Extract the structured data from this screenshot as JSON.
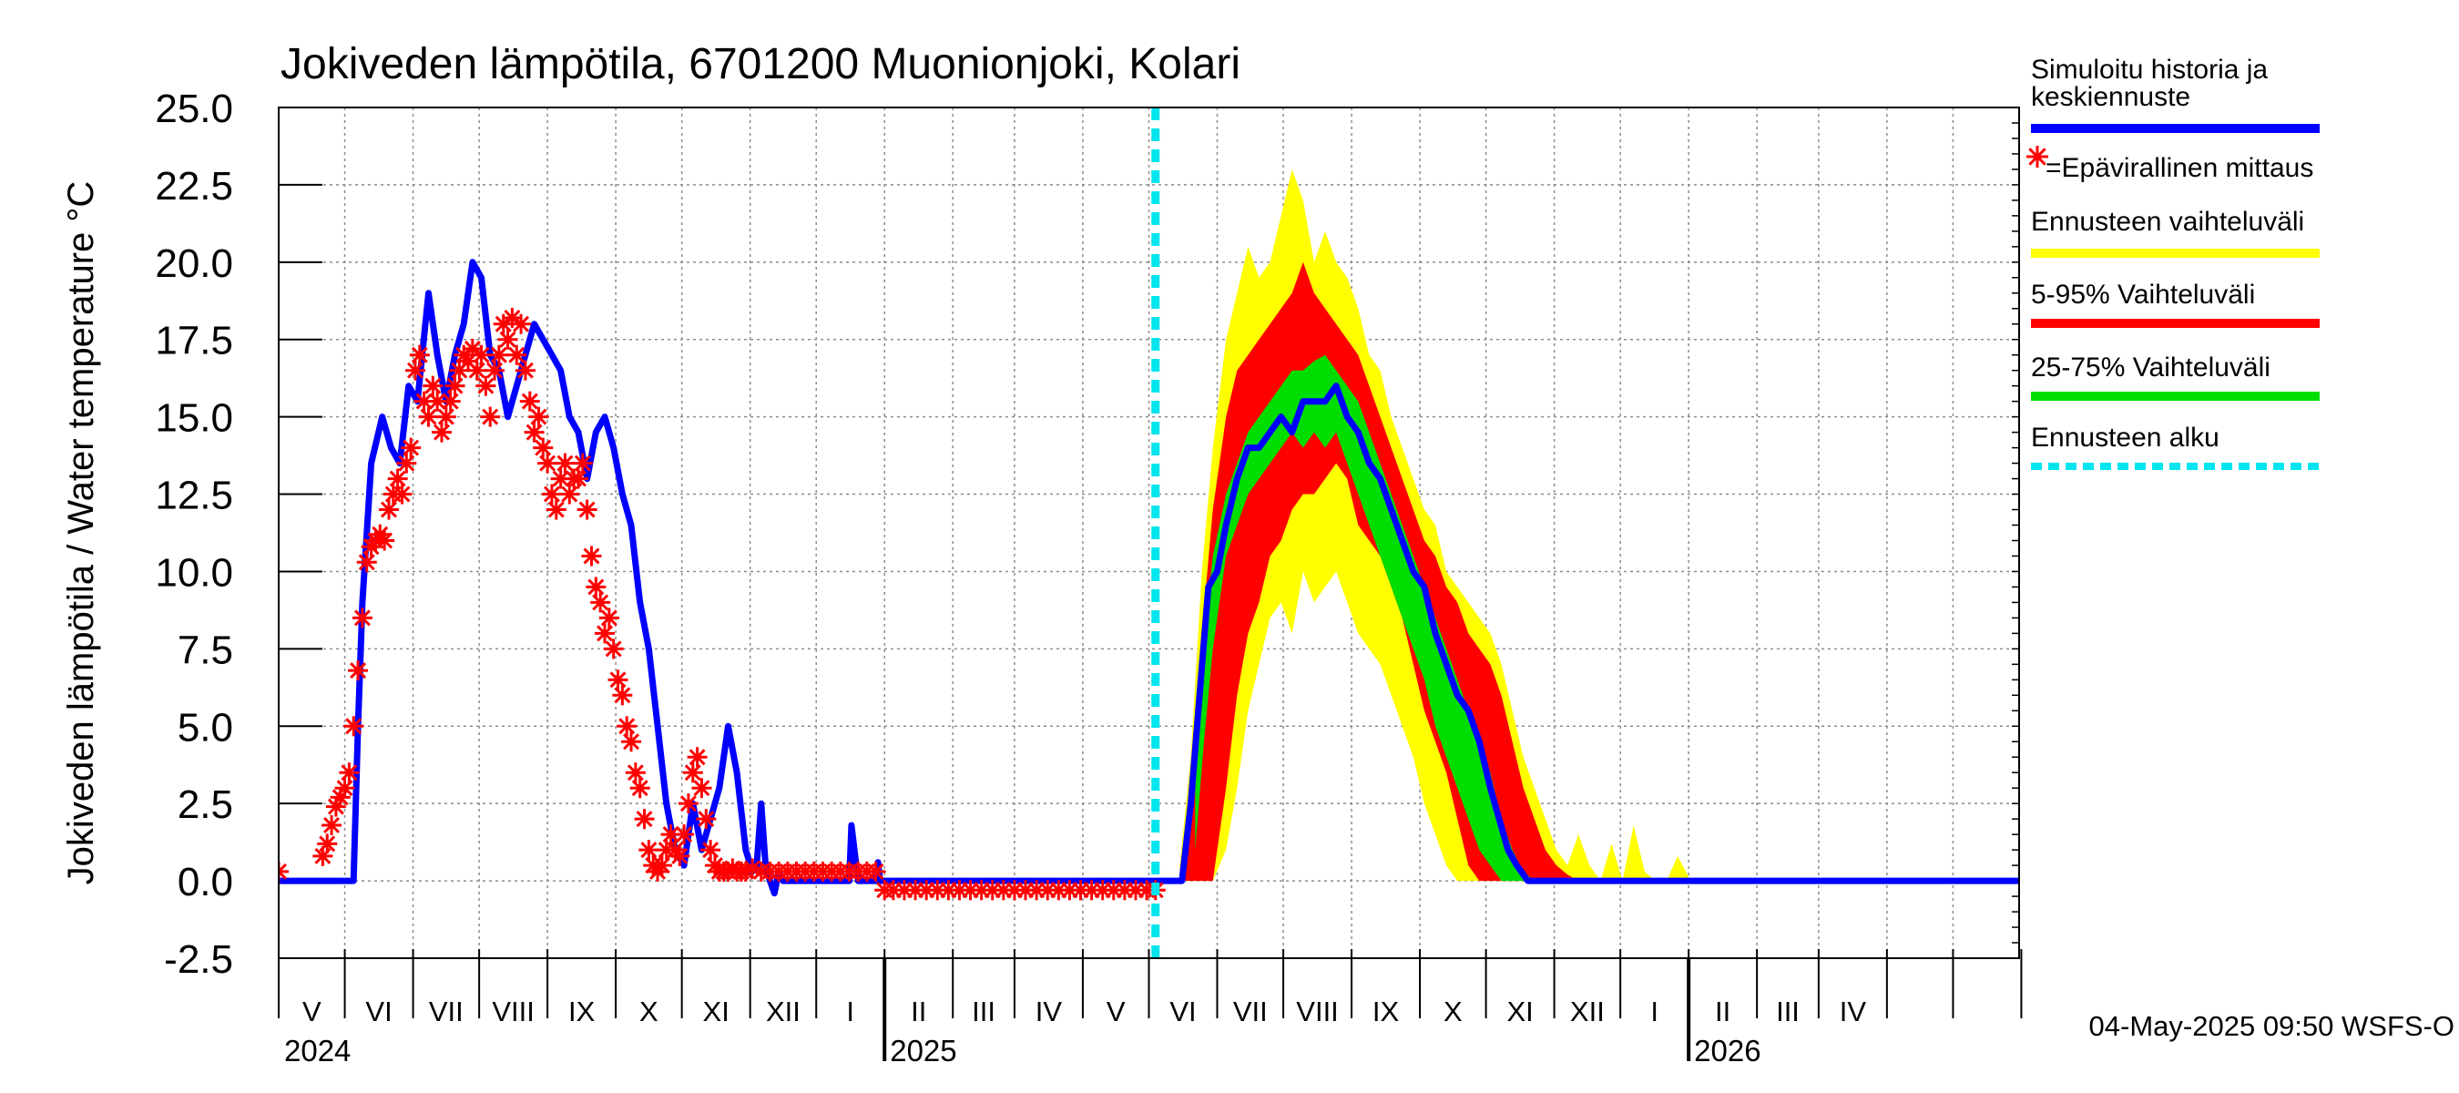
{
  "chart_data": {
    "type": "area",
    "title": "Jokiveden lämpötila, 6701200 Muonionjoki, Kolari",
    "ylabel": "Jokiveden lämpötila / Water temperature   °C",
    "ylim": [
      -2.5,
      25.0
    ],
    "yticks": [
      "25.0",
      "22.5",
      "20.0",
      "17.5",
      "15.0",
      "12.5",
      "10.0",
      "7.5",
      "5.0",
      "2.5",
      "0.0",
      "-2.5"
    ],
    "x_range": [
      "2024-04-01",
      "2026-05-31"
    ],
    "month_labels": [
      "V",
      "VI",
      "VII",
      "VIII",
      "IX",
      "X",
      "XI",
      "XII",
      "I",
      "II",
      "III",
      "IV",
      "V",
      "VI",
      "VII",
      "VIII",
      "IX",
      "X",
      "XI",
      "XII",
      "I",
      "II",
      "III",
      "IV"
    ],
    "year_labels": [
      "2024",
      "2025",
      "2026"
    ],
    "grid": true,
    "legend_position": "right",
    "forecast_start": "2025-05-04",
    "timestamp": "04-May-2025 09:50 WSFS-O",
    "colors": {
      "simulated": "#0000ff",
      "measured": "#ff0000",
      "forecast_range": "#ffff00",
      "range_5_95": "#ff0000",
      "range_25_75": "#00dd00",
      "forecast_start": "#00e5ee"
    },
    "legend": [
      {
        "key": "simulated",
        "label": "Simuloitu historia ja\nkeskiennuste",
        "style": "line"
      },
      {
        "key": "measured",
        "label": "=Epävirallinen mittaus",
        "style": "marker"
      },
      {
        "key": "forecast_range",
        "label": "Ennusteen vaihteluväli",
        "style": "line"
      },
      {
        "key": "range_5_95",
        "label": "5-95% Vaihteluväli",
        "style": "line"
      },
      {
        "key": "range_25_75",
        "label": "25-75% Vaihteluväli",
        "style": "line"
      },
      {
        "key": "forecast_start",
        "label": "Ennusteen alku",
        "style": "dashed"
      }
    ],
    "series": [
      {
        "key": "simulated",
        "x": [
          "2024-04-01",
          "2024-05-05",
          "2024-05-07",
          "2024-05-09",
          "2024-05-13",
          "2024-05-18",
          "2024-05-22",
          "2024-05-26",
          "2024-05-30",
          "2024-06-03",
          "2024-06-08",
          "2024-06-12",
          "2024-06-16",
          "2024-06-20",
          "2024-06-24",
          "2024-06-28",
          "2024-07-02",
          "2024-07-06",
          "2024-07-10",
          "2024-07-14",
          "2024-07-18",
          "2024-07-22",
          "2024-07-26",
          "2024-07-30",
          "2024-08-03",
          "2024-08-07",
          "2024-08-11",
          "2024-08-15",
          "2024-08-19",
          "2024-08-23",
          "2024-08-27",
          "2024-08-31",
          "2024-09-04",
          "2024-09-08",
          "2024-09-12",
          "2024-09-16",
          "2024-09-20",
          "2024-09-24",
          "2024-09-28",
          "2024-10-02",
          "2024-10-06",
          "2024-10-10",
          "2024-10-14",
          "2024-10-18",
          "2024-10-22",
          "2024-10-26",
          "2024-10-30",
          "2024-11-02",
          "2024-11-04",
          "2024-11-06",
          "2024-11-08",
          "2024-11-10",
          "2024-11-12",
          "2024-11-14",
          "2024-11-16",
          "2024-11-18",
          "2024-11-20",
          "2024-11-22",
          "2024-11-24",
          "2024-11-26",
          "2024-11-30",
          "2024-12-04",
          "2024-12-08",
          "2024-12-12",
          "2024-12-15",
          "2024-12-16",
          "2024-12-17",
          "2024-12-20",
          "2024-12-25",
          "2024-12-28",
          "2024-12-29",
          "2024-12-30",
          "2025-01-05",
          "2025-05-04",
          "2025-05-10",
          "2025-05-16",
          "2025-05-20",
          "2025-05-24",
          "2025-05-28",
          "2025-06-01",
          "2025-06-05",
          "2025-06-10",
          "2025-06-15",
          "2025-06-20",
          "2025-06-25",
          "2025-06-30",
          "2025-07-05",
          "2025-07-10",
          "2025-07-15",
          "2025-07-20",
          "2025-07-25",
          "2025-07-30",
          "2025-08-04",
          "2025-08-09",
          "2025-08-14",
          "2025-08-19",
          "2025-08-24",
          "2025-08-29",
          "2025-09-03",
          "2025-09-08",
          "2025-09-13",
          "2025-09-18",
          "2025-09-23",
          "2025-09-28",
          "2025-10-03",
          "2025-10-07",
          "2025-10-11",
          "2025-10-15",
          "2025-10-20",
          "2025-10-30",
          "2025-11-15",
          "2026-05-31"
        ],
        "y": [
          0.0,
          0.0,
          5.0,
          9.0,
          13.5,
          15.0,
          14.0,
          13.5,
          16.0,
          15.5,
          19.0,
          17.0,
          15.5,
          17.0,
          18.0,
          20.0,
          19.5,
          17.0,
          16.5,
          15.0,
          16.0,
          17.0,
          18.0,
          17.5,
          17.0,
          16.5,
          15.0,
          14.5,
          13.0,
          14.5,
          15.0,
          14.0,
          12.5,
          11.5,
          9.0,
          7.5,
          5.0,
          2.5,
          1.0,
          0.5,
          2.5,
          1.0,
          2.0,
          3.0,
          5.0,
          3.5,
          1.0,
          0.3,
          0.5,
          2.5,
          0.5,
          0.0,
          -0.4,
          0.3,
          0.0,
          0.0,
          0.0,
          0.0,
          0.0,
          0.0,
          0.0,
          0.0,
          0.0,
          0.0,
          0.0,
          0.0,
          1.8,
          0.0,
          0.0,
          0.0,
          0.6,
          0.0,
          0.0,
          0.0,
          0.0,
          0.0,
          2.5,
          6.0,
          9.5,
          10.0,
          11.5,
          13.0,
          14.0,
          14.0,
          14.5,
          15.0,
          14.5,
          15.5,
          15.5,
          15.5,
          16.0,
          15.0,
          14.5,
          13.5,
          13.0,
          12.0,
          11.0,
          10.0,
          9.5,
          8.0,
          7.0,
          6.0,
          5.5,
          4.5,
          3.0,
          2.0,
          1.0,
          0.5,
          0.0,
          0.0,
          0.0,
          0.0
        ]
      },
      {
        "key": "measured",
        "x": [
          "2024-04-01",
          "2024-04-21",
          "2024-04-23",
          "2024-04-25",
          "2024-04-27",
          "2024-04-29",
          "2024-05-01",
          "2024-05-03",
          "2024-05-05",
          "2024-05-07",
          "2024-05-09",
          "2024-05-11",
          "2024-05-13",
          "2024-05-15",
          "2024-05-17",
          "2024-05-19",
          "2024-05-21",
          "2024-05-23",
          "2024-05-25",
          "2024-05-27",
          "2024-05-29",
          "2024-05-31",
          "2024-06-02",
          "2024-06-04",
          "2024-06-06",
          "2024-06-08",
          "2024-06-10",
          "2024-06-12",
          "2024-06-14",
          "2024-06-16",
          "2024-06-18",
          "2024-06-20",
          "2024-06-22",
          "2024-06-24",
          "2024-06-26",
          "2024-06-28",
          "2024-06-30",
          "2024-07-02",
          "2024-07-04",
          "2024-07-06",
          "2024-07-08",
          "2024-07-10",
          "2024-07-12",
          "2024-07-14",
          "2024-07-16",
          "2024-07-18",
          "2024-07-20",
          "2024-07-22",
          "2024-07-24",
          "2024-07-26",
          "2024-07-28",
          "2024-07-30",
          "2024-08-01",
          "2024-08-03",
          "2024-08-05",
          "2024-08-07",
          "2024-08-09",
          "2024-08-11",
          "2024-08-13",
          "2024-08-15",
          "2024-08-17",
          "2024-08-19",
          "2024-08-21",
          "2024-08-23",
          "2024-08-25",
          "2024-08-27",
          "2024-08-29",
          "2024-08-31",
          "2024-09-02",
          "2024-09-04",
          "2024-09-06",
          "2024-09-08",
          "2024-09-10",
          "2024-09-12",
          "2024-09-14",
          "2024-09-16",
          "2024-09-18",
          "2024-09-20",
          "2024-09-22",
          "2024-09-24",
          "2024-09-26",
          "2024-09-28",
          "2024-09-30",
          "2024-10-02",
          "2024-10-04",
          "2024-10-06",
          "2024-10-08",
          "2024-10-10",
          "2024-10-12",
          "2024-10-14",
          "2024-10-16",
          "2024-10-18",
          "2024-10-20",
          "2024-10-22",
          "2024-10-24",
          "2024-10-26",
          "2024-10-28",
          "2024-10-30",
          "2024-11-02",
          "2024-11-06",
          "2024-11-10",
          "2024-11-14",
          "2024-11-18",
          "2024-11-22",
          "2024-11-26",
          "2024-11-30",
          "2024-12-04",
          "2024-12-08",
          "2024-12-12",
          "2024-12-16",
          "2024-12-20",
          "2024-12-24",
          "2024-12-28",
          "2025-01-01",
          "2025-01-05",
          "2025-01-10",
          "2025-01-15",
          "2025-01-20",
          "2025-01-25",
          "2025-01-30",
          "2025-02-04",
          "2025-02-09",
          "2025-02-14",
          "2025-02-19",
          "2025-02-24",
          "2025-03-01",
          "2025-03-06",
          "2025-03-11",
          "2025-03-16",
          "2025-03-21",
          "2025-03-26",
          "2025-03-31",
          "2025-04-05",
          "2025-04-10",
          "2025-04-15",
          "2025-04-20",
          "2025-04-25",
          "2025-04-30",
          "2025-05-04"
        ],
        "y": [
          0.3,
          0.8,
          1.2,
          1.8,
          2.4,
          2.7,
          3.0,
          3.5,
          5.0,
          6.8,
          8.5,
          10.3,
          10.8,
          11.0,
          11.2,
          11.0,
          12.0,
          12.5,
          13.0,
          12.5,
          13.5,
          14.0,
          16.5,
          17.0,
          15.5,
          15.0,
          16.0,
          15.5,
          14.5,
          15.0,
          15.5,
          16.0,
          16.5,
          17.0,
          16.8,
          17.2,
          16.5,
          17.0,
          16.0,
          15.0,
          16.5,
          17.0,
          18.0,
          17.5,
          18.2,
          17.0,
          18.0,
          16.5,
          15.5,
          14.5,
          15.0,
          14.0,
          13.5,
          12.5,
          12.0,
          13.0,
          13.5,
          12.5,
          13.0,
          13.0,
          13.5,
          12.0,
          10.5,
          9.5,
          9.0,
          8.0,
          8.5,
          7.5,
          6.5,
          6.0,
          5.0,
          4.5,
          3.5,
          3.0,
          2.0,
          1.0,
          0.5,
          0.3,
          0.5,
          1.0,
          1.5,
          1.0,
          0.8,
          1.5,
          2.5,
          3.5,
          4.0,
          3.0,
          2.0,
          1.0,
          0.5,
          0.3,
          0.3,
          0.3,
          0.4,
          0.3,
          0.3,
          0.3,
          0.4,
          0.3,
          0.3,
          0.3,
          0.3,
          0.3,
          0.3,
          0.3,
          0.3,
          0.3,
          0.3,
          0.3,
          0.3,
          0.3,
          0.3,
          -0.3,
          -0.3,
          -0.3,
          -0.3,
          -0.3,
          -0.3,
          -0.3,
          -0.3,
          -0.3,
          -0.3,
          -0.3,
          -0.3,
          -0.3,
          -0.3,
          -0.3,
          -0.3,
          -0.3,
          -0.3,
          -0.3,
          -0.3,
          -0.3,
          -0.3,
          -0.3,
          -0.3,
          -0.3,
          -0.3
        ]
      },
      {
        "key": "forecast_range",
        "x": [
          "2025-05-15",
          "2025-05-20",
          "2025-05-25",
          "2025-05-30",
          "2025-06-05",
          "2025-06-10",
          "2025-06-15",
          "2025-06-20",
          "2025-06-25",
          "2025-06-30",
          "2025-07-05",
          "2025-07-10",
          "2025-07-15",
          "2025-07-20",
          "2025-07-25",
          "2025-07-30",
          "2025-08-04",
          "2025-08-09",
          "2025-08-14",
          "2025-08-19",
          "2025-08-24",
          "2025-08-29",
          "2025-09-03",
          "2025-09-08",
          "2025-09-13",
          "2025-09-18",
          "2025-09-23",
          "2025-09-28",
          "2025-10-03",
          "2025-10-08",
          "2025-10-13",
          "2025-10-18",
          "2025-10-23",
          "2025-10-28",
          "2025-11-02",
          "2025-11-07",
          "2025-11-12",
          "2025-11-17",
          "2025-11-22",
          "2025-11-27",
          "2025-12-02",
          "2025-12-07",
          "2025-12-12",
          "2025-12-17",
          "2025-12-22",
          "2025-12-27",
          "2026-01-02"
        ],
        "upper": [
          0.5,
          4.0,
          10.0,
          14.0,
          17.5,
          19.0,
          20.5,
          19.5,
          20.0,
          21.5,
          23.0,
          22.0,
          20.0,
          21.0,
          20.0,
          19.5,
          18.5,
          17.0,
          16.5,
          15.0,
          14.0,
          13.0,
          12.0,
          11.5,
          10.0,
          9.5,
          9.0,
          8.5,
          8.0,
          7.0,
          5.5,
          4.0,
          3.0,
          2.0,
          1.0,
          0.5,
          1.5,
          0.5,
          0.0,
          1.2,
          0.0,
          1.8,
          0.3,
          0.0,
          0.0,
          0.8,
          0.0
        ],
        "lower": [
          0.0,
          0.0,
          0.0,
          0.0,
          1.0,
          3.0,
          5.5,
          7.0,
          8.5,
          9.0,
          8.0,
          10.0,
          9.0,
          9.5,
          10.0,
          9.0,
          8.0,
          7.5,
          7.0,
          6.0,
          5.0,
          4.0,
          2.5,
          1.5,
          0.5,
          0.0,
          0.0,
          0.0,
          0.0,
          0.0,
          0.0,
          0.0,
          0.0,
          0.0,
          0.0,
          0.0,
          0.0,
          0.0,
          0.0,
          0.0,
          0.0,
          0.0,
          0.0,
          0.0,
          0.0,
          0.0,
          0.0
        ]
      },
      {
        "key": "range_5_95",
        "x": [
          "2025-05-15",
          "2025-05-20",
          "2025-05-25",
          "2025-05-30",
          "2025-06-05",
          "2025-06-10",
          "2025-06-15",
          "2025-06-20",
          "2025-06-25",
          "2025-06-30",
          "2025-07-05",
          "2025-07-10",
          "2025-07-15",
          "2025-07-20",
          "2025-07-25",
          "2025-07-30",
          "2025-08-04",
          "2025-08-09",
          "2025-08-14",
          "2025-08-19",
          "2025-08-24",
          "2025-08-29",
          "2025-09-03",
          "2025-09-08",
          "2025-09-13",
          "2025-09-18",
          "2025-09-23",
          "2025-09-28",
          "2025-10-03",
          "2025-10-08",
          "2025-10-13",
          "2025-10-18",
          "2025-10-23",
          "2025-10-28",
          "2025-11-02",
          "2025-11-07",
          "2025-11-12"
        ],
        "upper": [
          0.3,
          2.5,
          8.0,
          12.0,
          15.0,
          16.5,
          17.0,
          17.5,
          18.0,
          18.5,
          19.0,
          20.0,
          19.0,
          18.5,
          18.0,
          17.5,
          17.0,
          16.0,
          15.0,
          14.0,
          13.0,
          12.0,
          11.0,
          10.5,
          9.5,
          9.0,
          8.0,
          7.5,
          7.0,
          6.0,
          4.5,
          3.0,
          2.0,
          1.0,
          0.5,
          0.2,
          0.0
        ],
        "lower": [
          0.0,
          0.0,
          0.0,
          0.0,
          3.0,
          6.0,
          8.0,
          9.0,
          10.5,
          11.0,
          12.0,
          12.5,
          12.5,
          13.0,
          13.5,
          13.0,
          11.5,
          11.0,
          10.5,
          9.5,
          8.5,
          7.0,
          5.5,
          4.5,
          3.5,
          2.0,
          0.5,
          0.0,
          0.0,
          0.0,
          0.0,
          0.0,
          0.0,
          0.0,
          0.0,
          0.0,
          0.0
        ]
      },
      {
        "key": "range_25_75",
        "x": [
          "2025-05-22",
          "2025-05-26",
          "2025-05-30",
          "2025-06-05",
          "2025-06-10",
          "2025-06-15",
          "2025-06-20",
          "2025-06-25",
          "2025-06-30",
          "2025-07-05",
          "2025-07-10",
          "2025-07-15",
          "2025-07-20",
          "2025-07-25",
          "2025-07-30",
          "2025-08-04",
          "2025-08-09",
          "2025-08-14",
          "2025-08-19",
          "2025-08-24",
          "2025-08-29",
          "2025-09-03",
          "2025-09-08",
          "2025-09-13",
          "2025-09-18",
          "2025-09-23",
          "2025-09-28",
          "2025-10-03",
          "2025-10-08",
          "2025-10-13",
          "2025-10-18",
          "2025-10-23"
        ],
        "upper": [
          4.0,
          8.0,
          10.5,
          12.5,
          13.5,
          14.5,
          15.0,
          15.5,
          16.0,
          16.5,
          16.5,
          16.8,
          17.0,
          16.5,
          16.0,
          15.5,
          14.5,
          13.5,
          12.5,
          11.5,
          10.5,
          9.5,
          8.5,
          7.5,
          6.5,
          5.5,
          4.5,
          3.5,
          2.0,
          1.0,
          0.3,
          0.0
        ],
        "lower": [
          1.0,
          4.5,
          7.5,
          10.5,
          11.5,
          12.5,
          13.0,
          13.5,
          14.0,
          14.5,
          14.0,
          14.5,
          14.0,
          14.5,
          13.5,
          12.5,
          11.5,
          10.5,
          9.5,
          8.5,
          7.5,
          6.5,
          5.0,
          4.0,
          3.0,
          2.0,
          1.0,
          0.5,
          0.0,
          0.0,
          0.0,
          0.0
        ]
      }
    ]
  }
}
